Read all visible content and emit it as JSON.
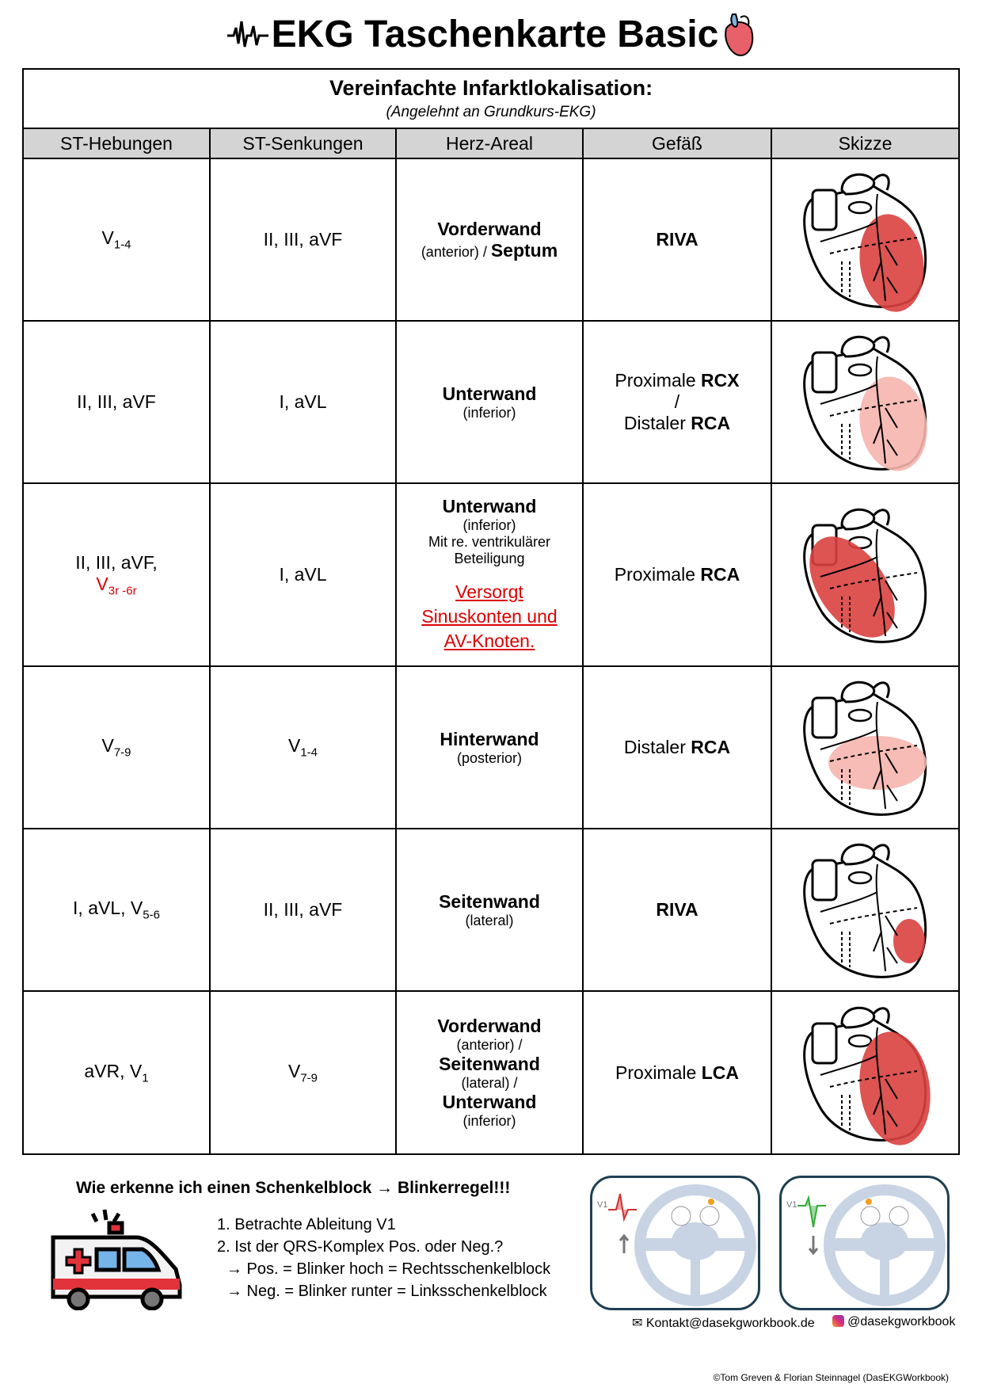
{
  "title": "EKG Taschenkarte Basic",
  "table": {
    "heading": "Vereinfachte Infarktlokalisation:",
    "subheading": "(Angelehnt an Grundkurs-EKG)",
    "columns": [
      "ST-Hebungen",
      "ST-Senkungen",
      "Herz-Areal",
      "Gefäß",
      "Skizze"
    ],
    "rows": [
      {
        "heb": "V",
        "heb_sub": "1-4",
        "senk": "II, III, aVF",
        "area_b1": "Vorderwand",
        "area_n1": "(anterior) / ",
        "area_b2": "Septum",
        "gefaess_pre": "",
        "gefaess_b": "RIVA"
      },
      {
        "heb": "II, III, aVF",
        "senk": "I, aVL",
        "area_b1": "Unterwand",
        "area_n1": "(inferior)",
        "gefaess_l1_pre": "Proximale ",
        "gefaess_l1_b": "RCX",
        "gefaess_sep": "/",
        "gefaess_l2_pre": "Distaler ",
        "gefaess_l2_b": "RCA"
      },
      {
        "heb": "II, III, aVF,",
        "heb_red": "V",
        "heb_red_sub": "3r -6r",
        "senk": "I, aVL",
        "area_b1": "Unterwand",
        "area_n1": "(inferior)",
        "area_n2": "Mit re. ventrikulärer",
        "area_n3": "Beteiligung",
        "area_link": [
          "Versorgt",
          "Sinuskonten und",
          "AV-Knoten."
        ],
        "gefaess_pre": "Proximale ",
        "gefaess_b": "RCA"
      },
      {
        "heb": "V",
        "heb_sub": "7-9",
        "senk": "V",
        "senk_sub": "1-4",
        "area_b1": "Hinterwand",
        "area_n1": "(posterior)",
        "gefaess_pre": "Distaler ",
        "gefaess_b": "RCA"
      },
      {
        "heb": "I, aVL, V",
        "heb_sub": "5-6",
        "senk": "II, III, aVF",
        "area_b1": "Seitenwand",
        "area_n1": "(lateral)",
        "gefaess_pre": "",
        "gefaess_b": "RIVA"
      },
      {
        "heb": "aVR, V",
        "heb_sub": "1",
        "senk": "V",
        "senk_sub": "7-9",
        "area_b1": "Vorderwand",
        "area_n1": "(anterior) /",
        "area_b2": "Seitenwand",
        "area_n2": "(lateral) /",
        "area_b3": "Unterwand",
        "area_n3": "(inferior)",
        "gefaess_pre": "Proximale ",
        "gefaess_b": "LCA"
      }
    ]
  },
  "bottom": {
    "heading": "Wie erkenne ich einen Schenkelblock → Blinkerregel!!!",
    "steps": [
      "1. Betrachte Ableitung V1",
      "2. Ist der QRS-Komplex Pos. oder Neg.?",
      "→ Pos. = Blinker hoch = Rechtsschenkelblock",
      "→ Neg. = Blinker runter = Linksschenkelblock"
    ],
    "lead_label": "V1",
    "email": "Kontakt@dasekgworkbook.de",
    "instagram": "@dasekgworkbook",
    "copyright": "©Tom Greven & Florian Steinnagel (DasEKGWorkbook)"
  },
  "colors": {
    "header_bg": "#d4d4d4",
    "infarct_dark": "#d9413f",
    "infarct_light": "#f6b5ae",
    "red_text": "#dd0000"
  }
}
